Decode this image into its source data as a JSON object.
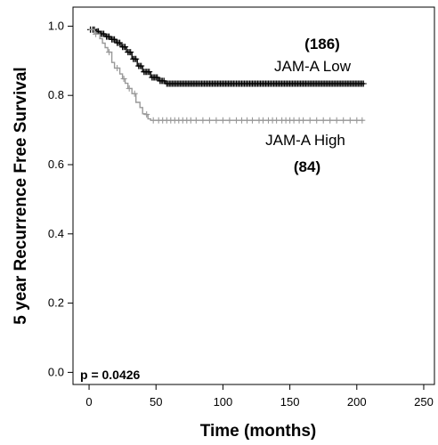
{
  "chart_data": {
    "type": "line",
    "xlabel": "Time (months)",
    "ylabel": "5 year Recurrence Free Survival",
    "xlim": [
      -12,
      258
    ],
    "ylim": [
      -0.035,
      1.055
    ],
    "x_ticks": [
      0,
      50,
      100,
      150,
      200,
      250
    ],
    "y_ticks": [
      0.0,
      0.2,
      0.4,
      0.6,
      0.8,
      1.0
    ],
    "x_tick_labels": [
      "0",
      "50",
      "100",
      "150",
      "200",
      "250"
    ],
    "y_tick_labels": [
      "0.0",
      "0.2",
      "0.4",
      "0.6",
      "0.8",
      "1.0"
    ],
    "grid": false,
    "annotations": {
      "p_value": "p = 0.0426",
      "low_count": "(186)",
      "low_label": "JAM-A Low",
      "high_label": "JAM-A High",
      "high_count": "(84)"
    },
    "series": [
      {
        "name": "JAM-A Low",
        "color": "#000000",
        "steps": [
          [
            0,
            0.99
          ],
          [
            5,
            0.985
          ],
          [
            8,
            0.978
          ],
          [
            12,
            0.97
          ],
          [
            16,
            0.962
          ],
          [
            20,
            0.952
          ],
          [
            24,
            0.94
          ],
          [
            28,
            0.925
          ],
          [
            32,
            0.905
          ],
          [
            36,
            0.885
          ],
          [
            40,
            0.868
          ],
          [
            46,
            0.852
          ],
          [
            52,
            0.842
          ],
          [
            57,
            0.834
          ],
          [
            206,
            0.834
          ]
        ],
        "censored": [
          1,
          3,
          4,
          6,
          7,
          9,
          10,
          11,
          13,
          14,
          15,
          17,
          18,
          19,
          21,
          22,
          23,
          25,
          26,
          27,
          29,
          30,
          31,
          33,
          34,
          35,
          37,
          38,
          39,
          41,
          42,
          43,
          44,
          45,
          47,
          48,
          49,
          50,
          51,
          53,
          54,
          55,
          56,
          58,
          59,
          60,
          61,
          62,
          63,
          64,
          65,
          66,
          67,
          68,
          69,
          70,
          71,
          72,
          73,
          74,
          75,
          76,
          77,
          78,
          79,
          80,
          81,
          82,
          83,
          84,
          85,
          86,
          87,
          88,
          89,
          90,
          91,
          92,
          93,
          94,
          95,
          96,
          97,
          98,
          99,
          100,
          101,
          102,
          103,
          104,
          105,
          106,
          107,
          108,
          109,
          110,
          111,
          112,
          113,
          114,
          115,
          116,
          117,
          118,
          119,
          120,
          121,
          122,
          123,
          124,
          125,
          126,
          127,
          128,
          129,
          130,
          131,
          132,
          133,
          134,
          135,
          136,
          137,
          138,
          139,
          140,
          141,
          142,
          143,
          144,
          145,
          146,
          147,
          148,
          149,
          150,
          151,
          152,
          153,
          154,
          155,
          156,
          157,
          158,
          159,
          160,
          161,
          162,
          163,
          164,
          165,
          166,
          167,
          168,
          169,
          170,
          171,
          172,
          173,
          174,
          175,
          176,
          177,
          178,
          179,
          180,
          181,
          182,
          183,
          184,
          185,
          186,
          187,
          188,
          189,
          190,
          191,
          192,
          193,
          194,
          195,
          196,
          197,
          198,
          199,
          200,
          201,
          202,
          203,
          204,
          205
        ]
      },
      {
        "name": "JAM-A High",
        "color": "#999999",
        "steps": [
          [
            0,
            0.99
          ],
          [
            4,
            0.977
          ],
          [
            8,
            0.964
          ],
          [
            10,
            0.951
          ],
          [
            12,
            0.938
          ],
          [
            14,
            0.925
          ],
          [
            17,
            0.895
          ],
          [
            19,
            0.879
          ],
          [
            23,
            0.862
          ],
          [
            25,
            0.848
          ],
          [
            27,
            0.835
          ],
          [
            29,
            0.82
          ],
          [
            32,
            0.805
          ],
          [
            35,
            0.78
          ],
          [
            38,
            0.765
          ],
          [
            40,
            0.747
          ],
          [
            42,
            0.745
          ],
          [
            44,
            0.732
          ],
          [
            46,
            0.728
          ],
          [
            205,
            0.728
          ]
        ],
        "censored": [
          2,
          5,
          15,
          21,
          26,
          30,
          34,
          43,
          48,
          52,
          55,
          58,
          61,
          64,
          67,
          70,
          73,
          76,
          80,
          85,
          90,
          95,
          100,
          105,
          110,
          114,
          118,
          122,
          127,
          130,
          134,
          137,
          140,
          144,
          147,
          150,
          153,
          157,
          160,
          165,
          170,
          175,
          180,
          185,
          190,
          195,
          200,
          204
        ]
      }
    ]
  }
}
